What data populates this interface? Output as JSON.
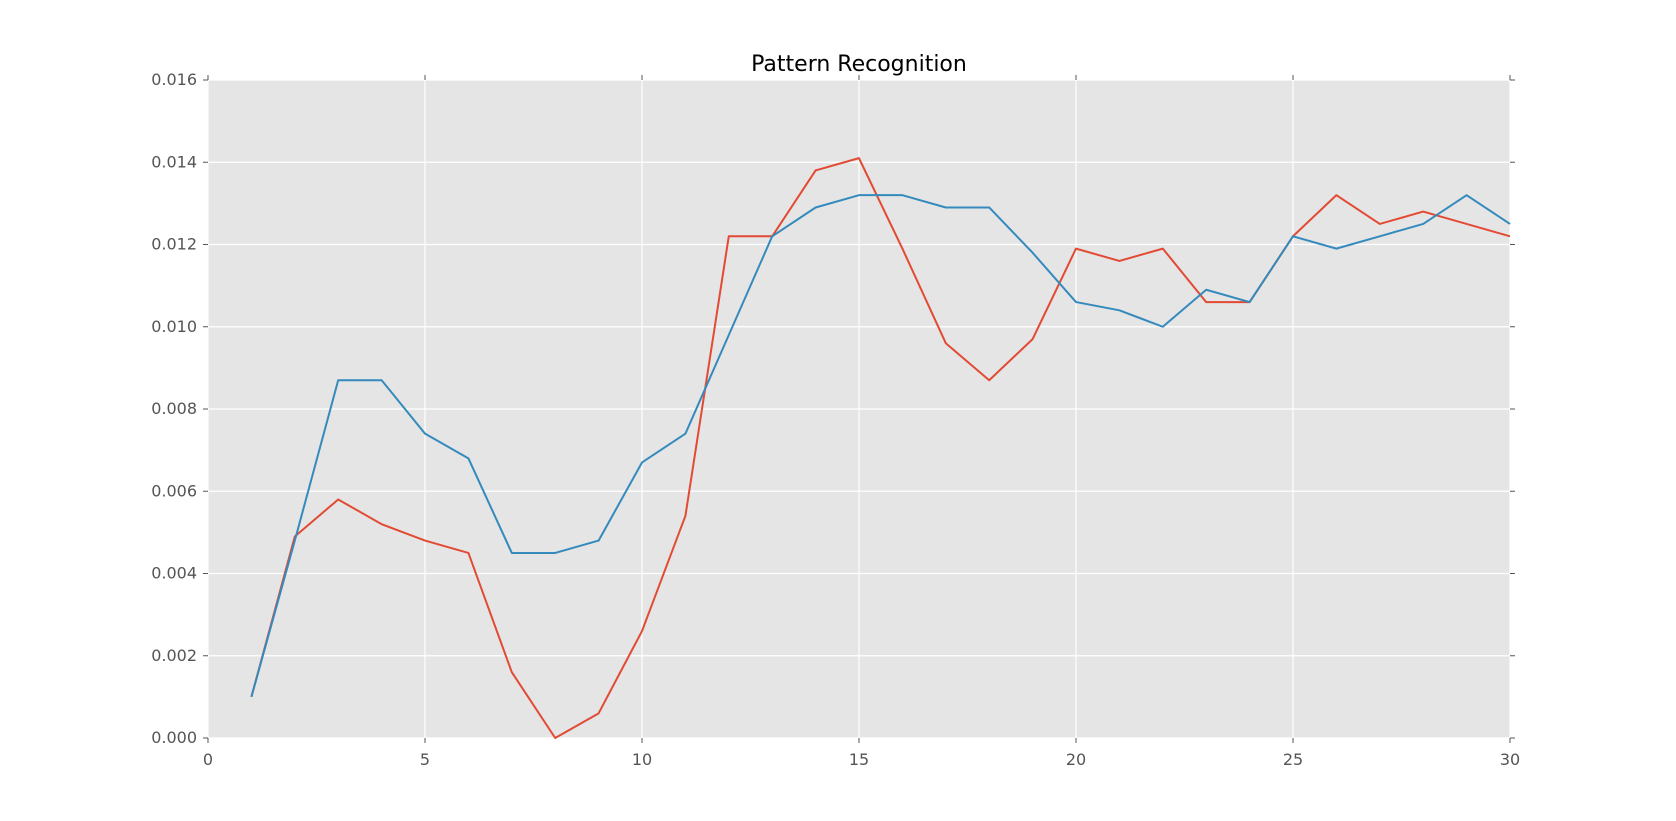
{
  "chart_data": {
    "type": "line",
    "title": "Pattern Recognition",
    "xlabel": "",
    "ylabel": "",
    "xlim": [
      0,
      30
    ],
    "ylim": [
      0,
      0.016
    ],
    "grid": true,
    "legend": null,
    "plot_bg_color": "#E5E5E5",
    "grid_color": "#FFFFFF",
    "tick_color": "#555555",
    "tick_label_color": "#555555",
    "title_color": "#000000",
    "xticks": {
      "values": [
        0,
        5,
        10,
        15,
        20,
        25,
        30
      ],
      "labels": [
        "0",
        "5",
        "10",
        "15",
        "20",
        "25",
        "30"
      ]
    },
    "yticks": {
      "values": [
        0.0,
        0.002,
        0.004,
        0.006,
        0.008,
        0.01,
        0.012,
        0.014,
        0.016
      ],
      "labels": [
        "0.000",
        "0.002",
        "0.004",
        "0.006",
        "0.008",
        "0.010",
        "0.012",
        "0.014",
        "0.016"
      ]
    },
    "x": [
      1,
      2,
      3,
      4,
      5,
      6,
      7,
      8,
      9,
      10,
      11,
      12,
      13,
      14,
      15,
      16,
      17,
      18,
      19,
      20,
      21,
      22,
      23,
      24,
      25,
      26,
      27,
      28,
      29,
      30
    ],
    "series": [
      {
        "name": "series-red",
        "color": "#E24A33",
        "values": [
          0.001,
          0.0049,
          0.0058,
          0.0052,
          0.0048,
          0.0045,
          0.0016,
          0.0,
          0.0006,
          0.0026,
          0.0054,
          0.0122,
          0.0122,
          0.0138,
          0.0141,
          0.0119,
          0.0096,
          0.0087,
          0.0097,
          0.0119,
          0.0116,
          0.0119,
          0.0106,
          0.0106,
          0.0122,
          0.0132,
          0.0125,
          0.0128,
          0.0125,
          0.0122
        ]
      },
      {
        "name": "series-blue",
        "color": "#348ABD",
        "values": [
          0.001,
          0.0048,
          0.0087,
          0.0087,
          0.0074,
          0.0068,
          0.0045,
          0.0045,
          0.0048,
          0.0067,
          0.0074,
          0.0098,
          0.0122,
          0.0129,
          0.0132,
          0.0132,
          0.0129,
          0.0129,
          0.0118,
          0.0106,
          0.0104,
          0.01,
          0.0109,
          0.0106,
          0.0122,
          0.0119,
          0.0122,
          0.0125,
          0.0132,
          0.0125
        ]
      }
    ]
  }
}
